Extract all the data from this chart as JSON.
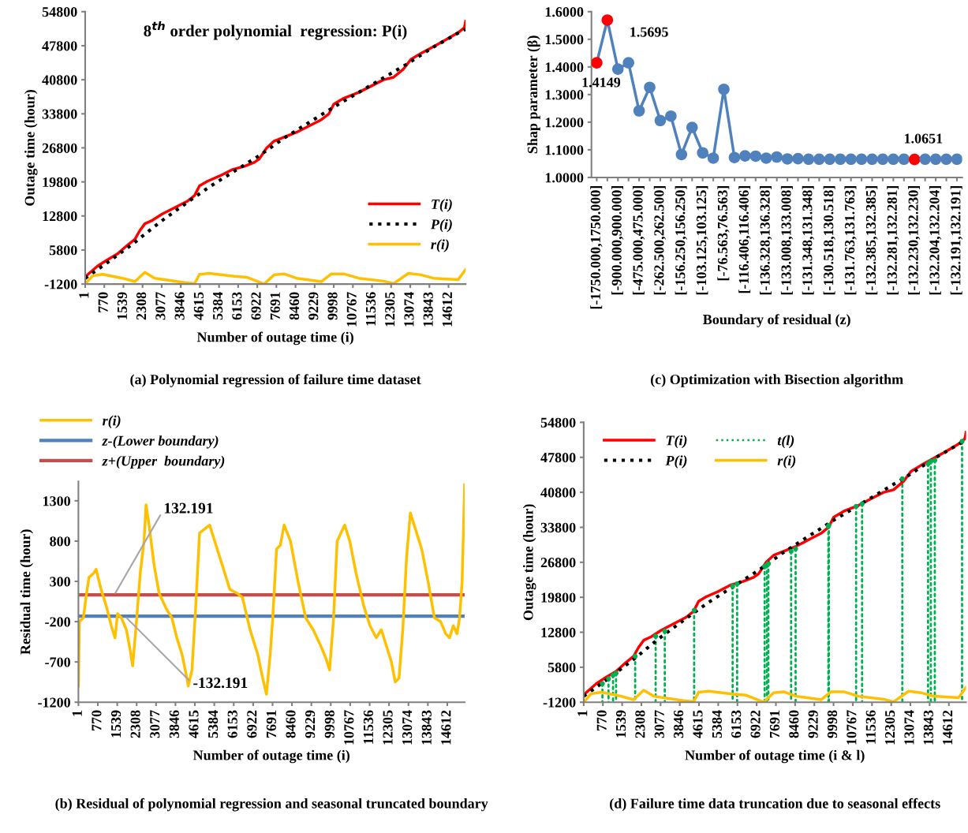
{
  "chart_data": [
    {
      "type": "line",
      "title": "8$^{th}$ order polynomial  regression: P(i)",
      "xlabel": "Number of outage time (i)",
      "ylabel": "Outage time (hour)",
      "xlim": [
        1,
        15300
      ],
      "xticks": [
        1,
        770,
        1539,
        2308,
        3077,
        3846,
        4615,
        5384,
        6153,
        6922,
        7691,
        8460,
        9229,
        9998,
        10767,
        11536,
        12305,
        13074,
        13843,
        14612
      ],
      "ylim": [
        -1200,
        54800
      ],
      "yticks": [
        -1200,
        5800,
        12800,
        19800,
        26800,
        33800,
        40800,
        47800,
        54800
      ],
      "legend": "bottom right",
      "series": [
        {
          "name": "T(i)",
          "color": "#ff0000",
          "x": [
            1,
            500,
            900,
            1300,
            1700,
            2000,
            2200,
            2400,
            2700,
            3100,
            3600,
            4100,
            4400,
            4600,
            4900,
            5400,
            5900,
            6400,
            6800,
            7000,
            7300,
            7600,
            8000,
            8500,
            9000,
            9500,
            9800,
            10000,
            10400,
            11000,
            11500,
            12000,
            12400,
            12800,
            13100,
            13500,
            14000,
            14500,
            15000,
            15250,
            15300
          ],
          "values": [
            300,
            2500,
            3800,
            5000,
            6800,
            8000,
            9800,
            11200,
            11900,
            13200,
            14500,
            15800,
            17000,
            19000,
            19900,
            21000,
            22300,
            23000,
            23800,
            24500,
            26800,
            28200,
            29000,
            30000,
            31300,
            32600,
            33800,
            35800,
            37000,
            38200,
            39500,
            40800,
            41300,
            43000,
            45000,
            46200,
            47600,
            49000,
            50500,
            51500,
            52800
          ]
        },
        {
          "name": "P(i)",
          "color": "#000000",
          "line_style": "dotted",
          "x": [
            1,
            1000,
            2000,
            3000,
            4000,
            5000,
            6000,
            7000,
            8000,
            9000,
            10000,
            11000,
            12000,
            13000,
            14000,
            15000,
            15300
          ],
          "values": [
            0,
            3600,
            7400,
            11500,
            15200,
            18800,
            22000,
            25200,
            28800,
            32000,
            35200,
            38200,
            41200,
            44200,
            47500,
            50400,
            51200
          ]
        },
        {
          "name": "r(i)",
          "color": "#ffc000",
          "x": [
            1,
            300,
            700,
            1500,
            2000,
            2400,
            2800,
            4000,
            4400,
            4600,
            5000,
            6000,
            6500,
            7000,
            7200,
            7600,
            8000,
            8500,
            9500,
            9900,
            10400,
            11000,
            12000,
            12400,
            13000,
            13500,
            14000,
            15000,
            15300
          ],
          "values": [
            -1200,
            500,
            800,
            0,
            -700,
            1200,
            0,
            -900,
            -1100,
            800,
            1000,
            400,
            200,
            -800,
            -1200,
            700,
            900,
            0,
            -700,
            900,
            900,
            0,
            -600,
            -1100,
            1000,
            700,
            0,
            -300,
            1800
          ]
        }
      ],
      "annotations": [
        "(a) Polynomial regression of failure time dataset"
      ]
    },
    {
      "type": "line",
      "xlabel": "Boundary of residual (z)",
      "ylabel": "Shap parameter (β)",
      "marker": "circle",
      "categories": [
        "[-1750.000,1750.000]",
        null,
        "[-900.000,900.000]",
        null,
        "[-475.000,475.000]",
        null,
        "[-262.500,262.500]",
        null,
        "[-156.250,156.250]",
        null,
        "[-103.125,103.125]",
        null,
        "[-76.563,76.563]",
        null,
        "[-116.406,116.406]",
        null,
        "[-136.328,136.328]",
        null,
        "[-133.008,133.008]",
        null,
        "[-131.348,131.348]",
        null,
        "[-130.518,130.518]",
        null,
        "[-131.763,131.763]",
        null,
        "[-132.385,132.385]",
        null,
        "[-132.281,132.281]",
        null,
        "[-132.230,132.230]",
        null,
        "[-132.204,132.204]",
        null,
        "[-132.191,132.191]"
      ],
      "ylim": [
        1.0,
        1.6
      ],
      "yticks": [
        {
          "value": 1.0,
          "label": "1.0000"
        },
        {
          "value": 1.1,
          "label": "1.1000"
        },
        {
          "value": 1.2,
          "label": "1.2000"
        },
        {
          "value": 1.3,
          "label": "1.3000"
        },
        {
          "value": 1.4,
          "label": "1.4000"
        },
        {
          "value": 1.5,
          "label": "1.5000"
        },
        {
          "value": 1.6,
          "label": "1.6000"
        }
      ],
      "series": [
        {
          "color": "#4f81bd",
          "values": [
            1.4149,
            1.5695,
            1.392,
            1.415,
            1.241,
            1.326,
            1.206,
            1.222,
            1.083,
            1.181,
            1.089,
            1.07,
            1.319,
            1.072,
            1.078,
            1.077,
            1.07,
            1.074,
            1.067,
            1.068,
            1.066,
            1.066,
            1.066,
            1.066,
            1.066,
            1.066,
            1.066,
            1.066,
            1.066,
            1.066,
            1.0651,
            1.066,
            1.066,
            1.066,
            1.066
          ],
          "colors": [
            "#ff0000",
            "#ff0000",
            "#4f81bd",
            "#4f81bd",
            "#4f81bd",
            "#4f81bd",
            "#4f81bd",
            "#4f81bd",
            "#4f81bd",
            "#4f81bd",
            "#4f81bd",
            "#4f81bd",
            "#4f81bd",
            "#4f81bd",
            "#4f81bd",
            "#4f81bd",
            "#4f81bd",
            "#4f81bd",
            "#4f81bd",
            "#4f81bd",
            "#4f81bd",
            "#4f81bd",
            "#4f81bd",
            "#4f81bd",
            "#4f81bd",
            "#4f81bd",
            "#4f81bd",
            "#4f81bd",
            "#4f81bd",
            "#4f81bd",
            "#ff0000",
            "#4f81bd",
            "#4f81bd",
            "#4f81bd",
            "#4f81bd"
          ],
          "value_labels": [
            "1.4149",
            "1.5695",
            null,
            null,
            null,
            null,
            null,
            null,
            null,
            null,
            null,
            null,
            null,
            null,
            null,
            null,
            null,
            null,
            null,
            null,
            null,
            null,
            null,
            null,
            null,
            null,
            null,
            null,
            null,
            null,
            "1.0651",
            null,
            null,
            null,
            null
          ]
        }
      ],
      "annotations": [
        "(c) Optimization with Bisection algorithm"
      ]
    },
    {
      "type": "line",
      "xlabel": "Number of outage time (i)",
      "ylabel": "Residual time (hour)",
      "xlim": [
        1,
        15300
      ],
      "xticks": [
        1,
        770,
        1539,
        2308,
        3077,
        3846,
        4615,
        5384,
        6153,
        6922,
        7691,
        8460,
        9229,
        9998,
        10767,
        11536,
        12305,
        13074,
        13843,
        14612
      ],
      "ylim": [
        -1200,
        1540
      ],
      "yticks": [
        -1200,
        -700,
        -200,
        300,
        800,
        1300
      ],
      "legend": "top left",
      "series": [
        {
          "name": "r(i)",
          "color": "#ffc000",
          "x": [
            1,
            40,
            200,
            300,
            420,
            600,
            700,
            900,
            1100,
            1300,
            1450,
            1550,
            1700,
            1900,
            2050,
            2150,
            2300,
            2450,
            2600,
            2680,
            2800,
            3000,
            3200,
            3500,
            3700,
            3900,
            4100,
            4300,
            4350,
            4500,
            4650,
            4800,
            5000,
            5200,
            5400,
            5700,
            6000,
            6300,
            6500,
            6800,
            7100,
            7300,
            7450,
            7600,
            7700,
            7850,
            8000,
            8150,
            8400,
            8700,
            9000,
            9300,
            9600,
            9800,
            9950,
            10100,
            10250,
            10400,
            10550,
            10750,
            11000,
            11300,
            11550,
            11800,
            12000,
            12200,
            12400,
            12550,
            12700,
            12850,
            13000,
            13150,
            13350,
            13600,
            13850,
            14100,
            14350,
            14550,
            14700,
            14850,
            15000,
            15100,
            15200,
            15300
          ],
          "values": [
            -1000,
            -200,
            -150,
            100,
            350,
            400,
            450,
            200,
            0,
            -250,
            -400,
            -100,
            -150,
            -300,
            -550,
            -750,
            -200,
            400,
            800,
            1250,
            1000,
            500,
            150,
            -50,
            -150,
            -400,
            -600,
            -900,
            -1000,
            -800,
            0,
            900,
            950,
            1000,
            800,
            500,
            200,
            150,
            100,
            -300,
            -600,
            -900,
            -1100,
            -600,
            -150,
            700,
            750,
            1000,
            800,
            300,
            -150,
            -300,
            -500,
            -650,
            -800,
            -200,
            800,
            900,
            1000,
            800,
            400,
            0,
            -250,
            -400,
            -300,
            -500,
            -700,
            -950,
            -900,
            -300,
            600,
            1150,
            950,
            700,
            300,
            -150,
            -200,
            -350,
            -400,
            -250,
            -350,
            -150,
            300,
            1500
          ]
        }
      ],
      "ref_lines": [
        {
          "axis": "y",
          "value": -132.191,
          "label": "z-(Lower boundary)",
          "color": "#4f81bd"
        },
        {
          "axis": "y",
          "value": 132.191,
          "label": "z+(Upper  boundary)",
          "color": "#c0504d"
        }
      ],
      "annotations": [
        {
          "text": "132.191",
          "x": 1422,
          "y": 132.191
        },
        {
          "text": "-132.191",
          "x": 1845,
          "y": -132.191
        },
        "(b) Residual of polynomial regression and seasonal truncated boundary"
      ]
    },
    {
      "type": "line",
      "xlabel": "Number of outage time (i & l)",
      "ylabel": "Outage time (hour)",
      "xlim": [
        1,
        15300
      ],
      "xticks": [
        1,
        770,
        1539,
        2308,
        3077,
        3846,
        4615,
        5384,
        6153,
        6922,
        7691,
        8460,
        9229,
        9998,
        10767,
        11536,
        12305,
        13074,
        13843,
        14612
      ],
      "ylim": [
        -1200,
        54800
      ],
      "yticks": [
        -1200,
        5800,
        12800,
        19800,
        26800,
        33800,
        40800,
        47800,
        54800
      ],
      "legend": "top left",
      "series": [
        {
          "name": "T(i)",
          "color": "#ff0000",
          "x": [
            1,
            500,
            900,
            1300,
            1700,
            2000,
            2200,
            2400,
            2700,
            3100,
            3600,
            4100,
            4400,
            4600,
            4900,
            5400,
            5900,
            6400,
            6800,
            7000,
            7300,
            7600,
            8000,
            8500,
            9000,
            9500,
            9800,
            10000,
            10400,
            11000,
            11500,
            12000,
            12400,
            12800,
            13100,
            13500,
            14000,
            14500,
            15000,
            15250,
            15300
          ],
          "values": [
            300,
            2500,
            3800,
            5000,
            6800,
            8000,
            9800,
            11200,
            11900,
            13200,
            14500,
            15800,
            17000,
            19000,
            19900,
            21000,
            22300,
            23000,
            23800,
            24500,
            26800,
            28200,
            29000,
            30000,
            31300,
            32600,
            33800,
            35800,
            37000,
            38200,
            39500,
            40800,
            41300,
            43000,
            45000,
            46200,
            47600,
            49000,
            50500,
            51500,
            52800
          ]
        },
        {
          "name": "P(i)",
          "color": "#000000",
          "line_style": "dotted",
          "x": [
            1,
            1000,
            2000,
            3000,
            4000,
            5000,
            6000,
            7000,
            8000,
            9000,
            10000,
            11000,
            12000,
            13000,
            14000,
            15000,
            15300
          ],
          "values": [
            0,
            3600,
            7400,
            11500,
            15200,
            18800,
            22000,
            25200,
            28800,
            32000,
            35200,
            38200,
            41200,
            44200,
            47500,
            50400,
            51200
          ]
        },
        {
          "name": "t(l)",
          "type": "lollipop",
          "color": "#00b050",
          "line_style": "dotted",
          "x": [
            750,
            993,
            1175,
            1296,
            2060,
            2880,
            3245,
            4420,
            5960,
            6140,
            7240,
            7330,
            7390,
            8300,
            8480,
            9790,
            9810,
            10900,
            11140,
            12750,
            13780,
            13890,
            14050,
            15140
          ],
          "values": [
            2500,
            3500,
            4200,
            4600,
            8000,
            12000,
            13000,
            17200,
            22000,
            22500,
            26000,
            26200,
            26500,
            29000,
            29500,
            34000,
            34200,
            38000,
            38500,
            43500,
            46500,
            47000,
            47200,
            51000
          ]
        },
        {
          "name": "r(i)",
          "color": "#ffc000",
          "x": [
            1,
            300,
            700,
            1500,
            2000,
            2400,
            2800,
            4000,
            4400,
            4600,
            5000,
            6000,
            6500,
            7000,
            7200,
            7600,
            8000,
            8500,
            9500,
            9900,
            10400,
            11000,
            12000,
            12400,
            13000,
            13500,
            14000,
            15000,
            15300
          ],
          "values": [
            -1200,
            500,
            800,
            0,
            -700,
            1200,
            0,
            -900,
            -1100,
            800,
            1000,
            400,
            200,
            -800,
            -1200,
            700,
            900,
            0,
            -700,
            900,
            900,
            0,
            -600,
            -1100,
            1000,
            700,
            0,
            -300,
            1800
          ]
        }
      ],
      "annotations": [
        "(d) Failure time data truncation due to seasonal effects"
      ]
    }
  ]
}
